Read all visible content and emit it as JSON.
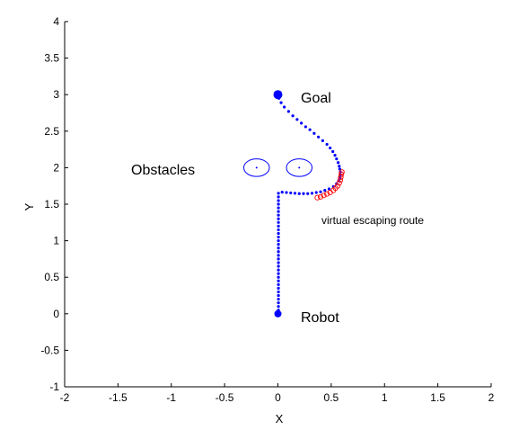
{
  "chart_data": {
    "type": "scatter",
    "title": "",
    "xlabel": "X",
    "ylabel": "Y",
    "xlim": [
      -2,
      2
    ],
    "ylim": [
      -1,
      4
    ],
    "xticks": [
      -2,
      -1.5,
      -1,
      -0.5,
      0,
      0.5,
      1,
      1.5,
      2
    ],
    "yticks": [
      -1,
      -0.5,
      0,
      0.5,
      1,
      1.5,
      2,
      2.5,
      3,
      3.5,
      4
    ],
    "xtick_labels": [
      "-2",
      "-1.5",
      "-1",
      "-0.5",
      "0",
      "0.5",
      "1",
      "1.5",
      "2"
    ],
    "ytick_labels": [
      "-1",
      "-0.5",
      "0",
      "0.5",
      "1",
      "1.5",
      "2",
      "2.5",
      "3",
      "3.5",
      "4"
    ],
    "grid": false,
    "colors": {
      "path": "#0000ff",
      "escape": "#ff0000",
      "axis": "#000000"
    },
    "robot_start": [
      0,
      0
    ],
    "goal": [
      0,
      3
    ],
    "obstacles": [
      {
        "center": [
          -0.2,
          2
        ],
        "radius": 0.12
      },
      {
        "center": [
          0.2,
          2
        ],
        "radius": 0.12
      }
    ],
    "path": [
      [
        0,
        0
      ],
      [
        0.005,
        0.05
      ],
      [
        0.005,
        0.1
      ],
      [
        0.005,
        0.15
      ],
      [
        0.005,
        0.2
      ],
      [
        0.005,
        0.25
      ],
      [
        0.005,
        0.3
      ],
      [
        0.005,
        0.35
      ],
      [
        0.005,
        0.4
      ],
      [
        0.005,
        0.45
      ],
      [
        0.005,
        0.5
      ],
      [
        0.005,
        0.55
      ],
      [
        0.005,
        0.6
      ],
      [
        0.005,
        0.65
      ],
      [
        0.005,
        0.7
      ],
      [
        0.005,
        0.75
      ],
      [
        0.005,
        0.8
      ],
      [
        0.005,
        0.85
      ],
      [
        0.005,
        0.9
      ],
      [
        0.005,
        0.95
      ],
      [
        0.005,
        1.0
      ],
      [
        0.005,
        1.05
      ],
      [
        0.005,
        1.1
      ],
      [
        0.005,
        1.15
      ],
      [
        0.005,
        1.2
      ],
      [
        0.005,
        1.25
      ],
      [
        0.005,
        1.3
      ],
      [
        0.005,
        1.35
      ],
      [
        0.005,
        1.4
      ],
      [
        0.005,
        1.45
      ],
      [
        0.005,
        1.5
      ],
      [
        0.005,
        1.55
      ],
      [
        0.005,
        1.6
      ],
      [
        0.005,
        1.65
      ],
      [
        0.04,
        1.665
      ],
      [
        0.08,
        1.66
      ],
      [
        0.12,
        1.655
      ],
      [
        0.16,
        1.65
      ],
      [
        0.2,
        1.645
      ],
      [
        0.24,
        1.645
      ],
      [
        0.28,
        1.645
      ],
      [
        0.32,
        1.65
      ],
      [
        0.36,
        1.66
      ],
      [
        0.4,
        1.67
      ],
      [
        0.44,
        1.69
      ],
      [
        0.48,
        1.71
      ],
      [
        0.52,
        1.74
      ],
      [
        0.55,
        1.78
      ],
      [
        0.57,
        1.82
      ],
      [
        0.58,
        1.86
      ],
      [
        0.585,
        1.9
      ],
      [
        0.585,
        1.94
      ],
      [
        0.58,
        1.98
      ],
      [
        0.575,
        2.02
      ],
      [
        0.565,
        2.07
      ],
      [
        0.55,
        2.12
      ],
      [
        0.535,
        2.17
      ],
      [
        0.515,
        2.22
      ],
      [
        0.49,
        2.27
      ],
      [
        0.46,
        2.32
      ],
      [
        0.42,
        2.37
      ],
      [
        0.38,
        2.42
      ],
      [
        0.34,
        2.47
      ],
      [
        0.3,
        2.52
      ],
      [
        0.26,
        2.56
      ],
      [
        0.22,
        2.61
      ],
      [
        0.18,
        2.66
      ],
      [
        0.14,
        2.71
      ],
      [
        0.1,
        2.77
      ],
      [
        0.06,
        2.83
      ],
      [
        0.03,
        2.89
      ],
      [
        0.01,
        2.95
      ],
      [
        0,
        3
      ]
    ],
    "escape_route": [
      [
        0.37,
        1.59
      ],
      [
        0.4,
        1.6
      ],
      [
        0.43,
        1.62
      ],
      [
        0.46,
        1.64
      ],
      [
        0.49,
        1.66
      ],
      [
        0.52,
        1.69
      ],
      [
        0.54,
        1.72
      ],
      [
        0.56,
        1.75
      ],
      [
        0.575,
        1.79
      ],
      [
        0.585,
        1.83
      ],
      [
        0.59,
        1.87
      ],
      [
        0.595,
        1.91
      ],
      [
        0.6,
        1.94
      ]
    ],
    "annotations": {
      "goal": "Goal",
      "obstacles": "Obstacles",
      "robot": "Robot",
      "escape": "virtual escaping route"
    }
  }
}
